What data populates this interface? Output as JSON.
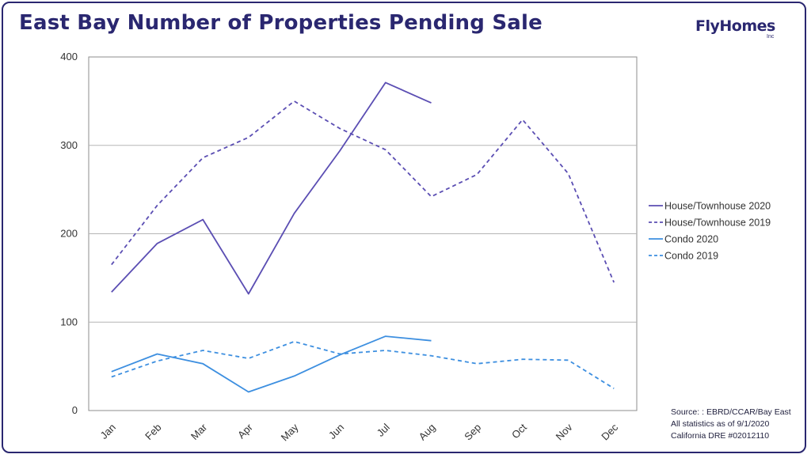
{
  "header": {
    "title": "East Bay Number of Properties Pending Sale",
    "logo_text": "FlyHomes",
    "logo_sub": "Inc"
  },
  "source": {
    "line1": "Source: : EBRD/CCAR/Bay East",
    "line2": "All statistics as of 9/1/2020",
    "line3": "California DRE #02012110"
  },
  "colors": {
    "dark_purple": "#5b4eb3",
    "light_blue": "#3d8fe0",
    "grid": "#b5b5b5",
    "title": "#2a2770"
  },
  "chart_data": {
    "type": "line",
    "title": "East Bay Number of Properties Pending Sale",
    "xlabel": "",
    "ylabel": "",
    "categories": [
      "Jan",
      "Feb",
      "Mar",
      "Apr",
      "May",
      "Jun",
      "Jul",
      "Aug",
      "Sep",
      "Oct",
      "Nov",
      "Dec"
    ],
    "yticks": [
      "0",
      "100",
      "200",
      "300",
      "400"
    ],
    "ylim": [
      0,
      400
    ],
    "grid": "horizontal",
    "legend_position": "right",
    "series": [
      {
        "name": "House/Townhouse 2020",
        "color": "#5b4eb3",
        "dashed": false,
        "values": [
          134,
          189,
          216,
          132,
          223,
          294,
          371,
          348,
          null,
          null,
          null,
          null
        ]
      },
      {
        "name": "House/Townhouse 2019",
        "color": "#5b4eb3",
        "dashed": true,
        "values": [
          165,
          232,
          286,
          309,
          350,
          319,
          295,
          242,
          267,
          329,
          268,
          145
        ]
      },
      {
        "name": "Condo 2020",
        "color": "#3d8fe0",
        "dashed": false,
        "values": [
          44,
          64,
          53,
          21,
          39,
          63,
          84,
          79,
          null,
          null,
          null,
          null
        ]
      },
      {
        "name": "Condo 2019",
        "color": "#3d8fe0",
        "dashed": true,
        "values": [
          38,
          56,
          68,
          59,
          78,
          64,
          68,
          62,
          53,
          58,
          57,
          25
        ]
      }
    ]
  }
}
